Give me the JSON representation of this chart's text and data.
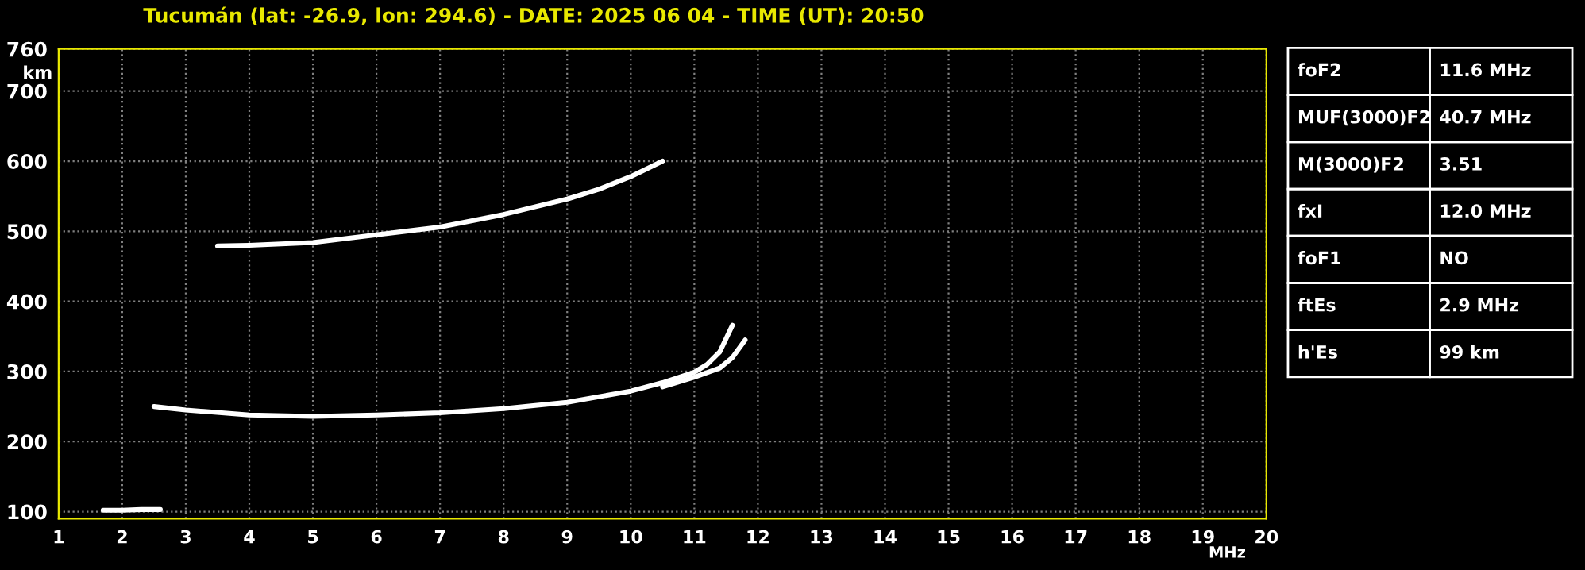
{
  "chart_data": {
    "type": "line",
    "title": "Tucumán (lat: -26.9, lon: 294.6) - DATE: 2025 06 04 - TIME (UT): 20:50",
    "xlabel": "MHz",
    "ylabel": "km",
    "series": [
      {
        "color": "#ffffff",
        "x": [
          1.7,
          2.0,
          2.3,
          2.6
        ],
        "values": [
          102,
          102,
          103,
          103
        ]
      },
      {
        "color": "#ffffff",
        "x": [
          2.5,
          3.0,
          4.0,
          5.0,
          6.0,
          7.0,
          8.0,
          9.0,
          10.0,
          10.5,
          11.0,
          11.2,
          11.4,
          11.6
        ],
        "values": [
          250,
          245,
          238,
          236,
          238,
          241,
          247,
          256,
          272,
          284,
          299,
          310,
          328,
          366
        ]
      },
      {
        "color": "#ffffff",
        "x": [
          10.5,
          11.0,
          11.4,
          11.6,
          11.8
        ],
        "values": [
          278,
          292,
          305,
          320,
          345
        ]
      },
      {
        "color": "#ffffff",
        "x": [
          3.5,
          4.0,
          5.0,
          6.0,
          7.0,
          8.0,
          9.0,
          9.5,
          10.0,
          10.5
        ],
        "values": [
          479,
          480,
          484,
          495,
          506,
          524,
          546,
          560,
          578,
          600
        ]
      }
    ],
    "xlim": [
      1,
      20
    ],
    "ylim": [
      90,
      760
    ],
    "xticks": [
      1,
      2,
      3,
      4,
      5,
      6,
      7,
      8,
      9,
      10,
      11,
      12,
      13,
      14,
      15,
      16,
      17,
      18,
      19,
      20
    ],
    "yticks": [
      100,
      200,
      300,
      400,
      500,
      600,
      700,
      760
    ],
    "grid": true,
    "line_style": "solid",
    "marker": "none",
    "annotations": [
      "foF2",
      "11.6 MHz",
      "MUF(3000)F2",
      "40.7 MHz",
      "M(3000)F2",
      "3.51",
      "fxI",
      "12.0 MHz",
      "foF1",
      "NO",
      "ftEs",
      "2.9 MHz",
      "h'Es",
      "99 km"
    ]
  }
}
